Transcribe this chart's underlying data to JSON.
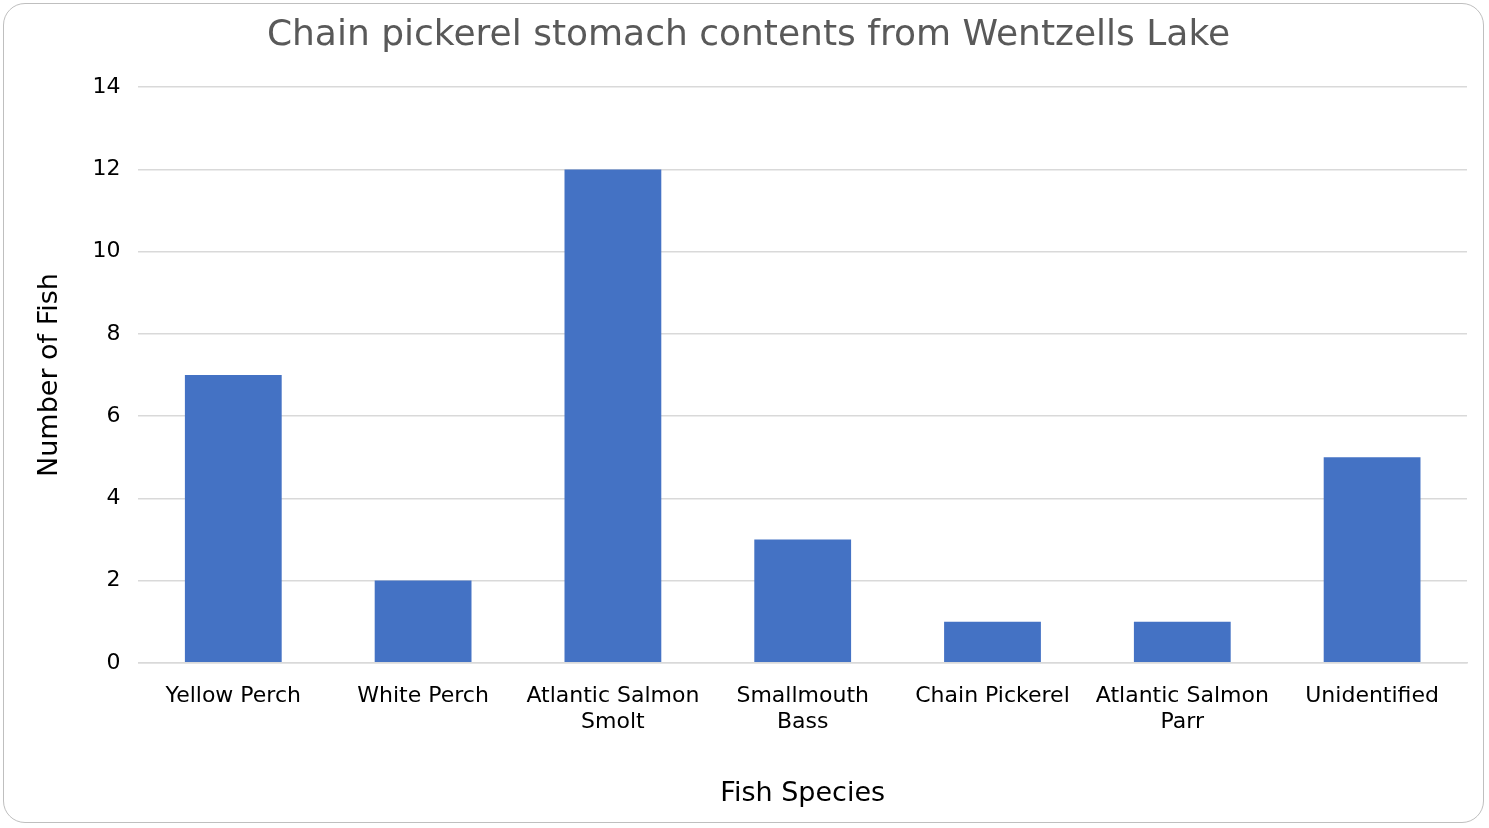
{
  "chart_data": {
    "type": "bar",
    "title": "Chain pickerel stomach contents from Wentzells Lake",
    "xlabel": "Fish Species",
    "ylabel": "Number of Fish",
    "categories": [
      "Yellow Perch",
      "White Perch",
      "Atlantic Salmon Smolt",
      "Smallmouth Bass",
      "Chain Pickerel",
      "Atlantic Salmon Parr",
      "Unidentified"
    ],
    "values": [
      7,
      2,
      12,
      3,
      1,
      1,
      5
    ],
    "color": "#4472c4",
    "ylim": [
      0,
      14
    ],
    "yticks": [
      0,
      2,
      4,
      6,
      8,
      10,
      12,
      14
    ],
    "grid": "y",
    "legend": false
  }
}
